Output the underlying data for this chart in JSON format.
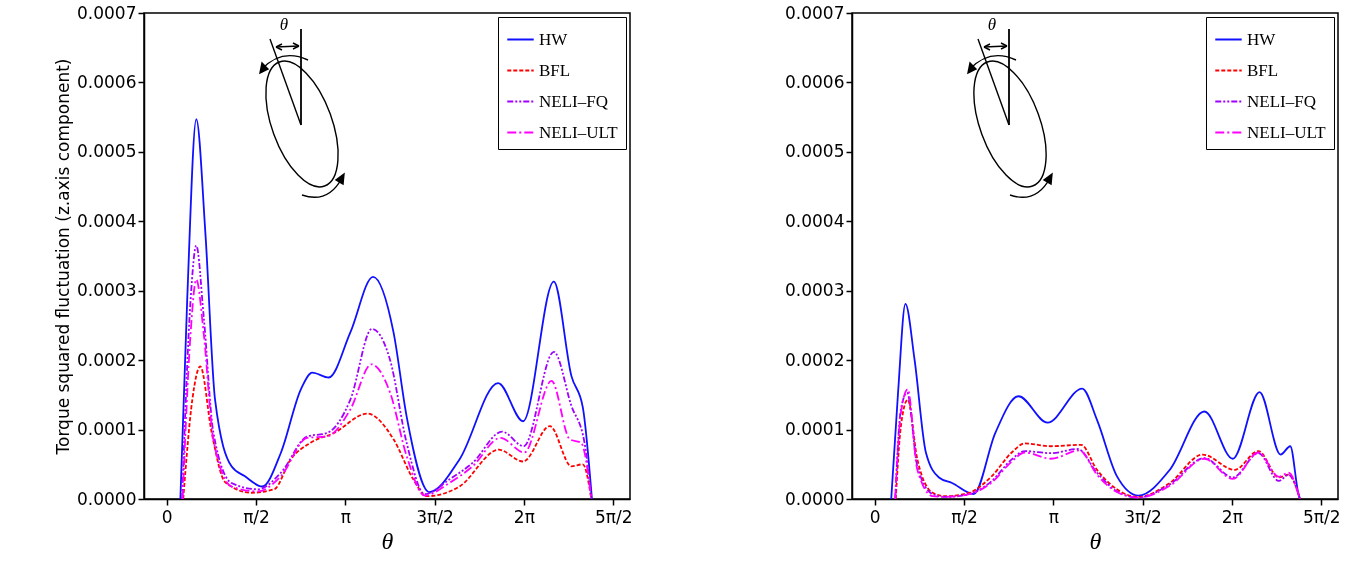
{
  "chart_data": [
    {
      "type": "line",
      "xlabel": "θ",
      "ylabel": "Torque squared fluctuation (z.axis component)",
      "annotations": [
        "θ"
      ],
      "legend": "top right",
      "xlim": [
        -0.4,
        8.15
      ],
      "xticks": [
        0,
        {
          "value": 1.5708,
          "label": "π/2"
        },
        {
          "value": 3.1416,
          "label": "π"
        },
        {
          "value": 4.7124,
          "label": "3π/2"
        },
        {
          "value": 6.2832,
          "label": "2π"
        },
        {
          "value": 7.854,
          "label": "5π/2"
        }
      ],
      "ylim": [
        0,
        0.0007
      ],
      "yticks": [
        {
          "value": 0,
          "label": "0.0000"
        },
        {
          "value": 0.0001,
          "label": "0.0001"
        },
        {
          "value": 0.0002,
          "label": "0.0002"
        },
        {
          "value": 0.0003,
          "label": "0.0003"
        },
        {
          "value": 0.0004,
          "label": "0.0004"
        },
        {
          "value": 0.0005,
          "label": "0.0005"
        },
        {
          "value": 0.0006,
          "label": "0.0006"
        },
        {
          "value": 0.0007,
          "label": "0.0007"
        }
      ],
      "series": [
        {
          "name": "HW",
          "color": "#1010ff",
          "line_style": "solid",
          "x": [
            0.24,
            0.36,
            0.52,
            0.68,
            0.85,
            1.14,
            1.37,
            1.68,
            2.01,
            2.36,
            2.56,
            2.85,
            3.23,
            3.63,
            3.99,
            4.22,
            4.62,
            5.15,
            5.83,
            6.27,
            6.81,
            7.12,
            7.32,
            7.48
          ],
          "values": [
            0,
            0.000287,
            0.000547,
            0.000383,
            0.000143,
            4.7e-05,
            3.3e-05,
            1.8e-05,
            6.7e-05,
            0.000158,
            0.000182,
            0.000175,
            0.00024,
            0.00032,
            0.00024,
            0.000119,
            1e-05,
            5.7e-05,
            0.000167,
            0.000112,
            0.000313,
            0.000177,
            0.000132,
            0
          ]
        },
        {
          "name": "BFL",
          "color": "#ff0000",
          "line_style": "dashed",
          "x": [
            0.29,
            0.45,
            0.59,
            0.79,
            1.03,
            1.49,
            1.89,
            2.18,
            2.53,
            2.94,
            3.53,
            3.99,
            4.34,
            4.57,
            5.15,
            5.84,
            6.27,
            6.74,
            7.12,
            7.32,
            7.47
          ],
          "values": [
            0,
            0.000143,
            0.000191,
            9.6e-05,
            2.4e-05,
            9e-06,
            1.4e-05,
            5.7e-05,
            8.1e-05,
            9.5e-05,
            0.000123,
            8.6e-05,
            2.8e-05,
            4e-06,
            1.8e-05,
            7.1e-05,
            5.4e-05,
            0.000105,
            4.7e-05,
            5e-05,
            0
          ]
        },
        {
          "name": "NELI–FQ",
          "color": "#a000ff",
          "line_style": "dashdotdot",
          "x": [
            0.27,
            0.42,
            0.52,
            0.65,
            0.82,
            1.14,
            1.6,
            2.01,
            2.47,
            2.82,
            3.23,
            3.61,
            3.93,
            4.22,
            4.54,
            4.97,
            5.38,
            5.9,
            6.28,
            6.81,
            7.12,
            7.35,
            7.47
          ],
          "values": [
            0,
            0.000287,
            0.000365,
            0.000263,
            9.6e-05,
            2.3e-05,
            1.4e-05,
            3.8e-05,
            9e-05,
            9.5e-05,
            0.000143,
            0.000245,
            0.0002,
            8.1e-05,
            7e-06,
            2.8e-05,
            5.2e-05,
            9.7e-05,
            7.6e-05,
            0.000212,
            0.000134,
            8.1e-05,
            0
          ]
        },
        {
          "name": "NELI–ULT",
          "color": "#ff00ff",
          "line_style": "dashdot",
          "x": [
            0.28,
            0.42,
            0.52,
            0.65,
            0.82,
            1.14,
            1.6,
            2.01,
            2.47,
            2.82,
            3.23,
            3.6,
            3.93,
            4.22,
            4.54,
            4.97,
            5.38,
            5.87,
            6.29,
            6.77,
            7.09,
            7.29,
            7.47
          ],
          "values": [
            0,
            0.000239,
            0.000316,
            0.000239,
            8.6e-05,
            1.8e-05,
            1.1e-05,
            3.3e-05,
            8.8e-05,
            9e-05,
            0.000129,
            0.000194,
            0.000153,
            6.2e-05,
            5e-06,
            2.3e-05,
            4.7e-05,
            8.8e-05,
            6.7e-05,
            0.00017,
            8.6e-05,
            8.1e-05,
            0
          ]
        }
      ]
    },
    {
      "type": "line",
      "xlabel": "θ",
      "annotations": [
        "θ"
      ],
      "legend": "top right",
      "xlim": [
        -0.4,
        8.15
      ],
      "xticks": [
        0,
        {
          "value": 1.5708,
          "label": "π/2"
        },
        {
          "value": 3.1416,
          "label": "π"
        },
        {
          "value": 4.7124,
          "label": "3π/2"
        },
        {
          "value": 6.2832,
          "label": "2π"
        },
        {
          "value": 7.854,
          "label": "5π/2"
        }
      ],
      "ylim": [
        0,
        0.0007
      ],
      "yticks": [
        {
          "value": 0,
          "label": "0.0000"
        },
        {
          "value": 0.0001,
          "label": "0.0001"
        },
        {
          "value": 0.0002,
          "label": "0.0002"
        },
        {
          "value": 0.0003,
          "label": "0.0003"
        },
        {
          "value": 0.0004,
          "label": "0.0004"
        },
        {
          "value": 0.0005,
          "label": "0.0005"
        },
        {
          "value": 0.0006,
          "label": "0.0006"
        },
        {
          "value": 0.0007,
          "label": "0.0007"
        }
      ],
      "series": [
        {
          "name": "HW",
          "color": "#1010ff",
          "line_style": "solid",
          "x": [
            0.29,
            0.41,
            0.54,
            0.7,
            0.9,
            1.13,
            1.36,
            1.74,
            2.12,
            2.53,
            3.04,
            3.65,
            3.91,
            4.26,
            4.64,
            5.19,
            5.8,
            6.3,
            6.77,
            7.14,
            7.31,
            7.45,
            7.48
          ],
          "values": [
            0,
            0.000153,
            0.000281,
            0.000201,
            6.7e-05,
            3.1e-05,
            2.3e-05,
            7e-06,
            9.5e-05,
            0.000148,
            0.00011,
            0.000159,
            0.000114,
            3.3e-05,
            5e-06,
            4.2e-05,
            0.000126,
            5.8e-05,
            0.000154,
            6.4e-05,
            7.6e-05,
            9e-06,
            0
          ]
        },
        {
          "name": "BFL",
          "color": "#ff0000",
          "line_style": "dashed",
          "x": [
            0.37,
            0.46,
            0.58,
            0.75,
            1.02,
            1.25,
            1.66,
            2.06,
            2.41,
            2.64,
            3.1,
            3.63,
            3.91,
            4.26,
            4.64,
            5.19,
            5.77,
            6.33,
            6.75,
            7.11,
            7.28,
            7.48
          ],
          "values": [
            0,
            0.000105,
            0.000143,
            5.7e-05,
            9e-06,
            4e-06,
            9e-06,
            3.3e-05,
            6.7e-05,
            8e-05,
            7.6e-05,
            7.8e-05,
            4.2e-05,
            1.4e-05,
            3e-06,
            2.3e-05,
            6.4e-05,
            4.2e-05,
            6.9e-05,
            3.1e-05,
            3.5e-05,
            0
          ]
        },
        {
          "name": "NELI–FQ",
          "color": "#a000ff",
          "line_style": "dashdotdot",
          "x": [
            0.36,
            0.46,
            0.57,
            0.75,
            1.02,
            1.25,
            1.66,
            2.06,
            2.41,
            2.64,
            3.1,
            3.57,
            3.91,
            4.26,
            4.64,
            5.19,
            5.8,
            6.3,
            6.75,
            7.11,
            7.28,
            7.48
          ],
          "values": [
            0,
            0.000129,
            0.000153,
            4.7e-05,
            7e-06,
            3e-06,
            7e-06,
            2.6e-05,
            5.7e-05,
            6.9e-05,
            6.6e-05,
            7.2e-05,
            3.8e-05,
            1.1e-05,
            2e-06,
            2.1e-05,
            5.9e-05,
            3.1e-05,
            6.6e-05,
            2.6e-05,
            3.5e-05,
            0
          ]
        },
        {
          "name": "NELI–ULT",
          "color": "#ff00ff",
          "line_style": "dashdot",
          "x": [
            0.36,
            0.46,
            0.58,
            0.75,
            1.02,
            1.25,
            1.66,
            2.06,
            2.41,
            2.64,
            3.1,
            3.6,
            3.91,
            4.26,
            4.64,
            5.19,
            5.8,
            6.3,
            6.75,
            7.11,
            7.28,
            7.48
          ],
          "values": [
            0,
            0.000124,
            0.000158,
            4.2e-05,
            4e-06,
            3e-06,
            7e-06,
            2.4e-05,
            5.4e-05,
            6.7e-05,
            5.8e-05,
            7e-05,
            3.5e-05,
            1e-05,
            2e-06,
            1.9e-05,
            5.8e-05,
            2.9e-05,
            6.7e-05,
            3.2e-05,
            3.8e-05,
            0
          ]
        }
      ]
    }
  ]
}
